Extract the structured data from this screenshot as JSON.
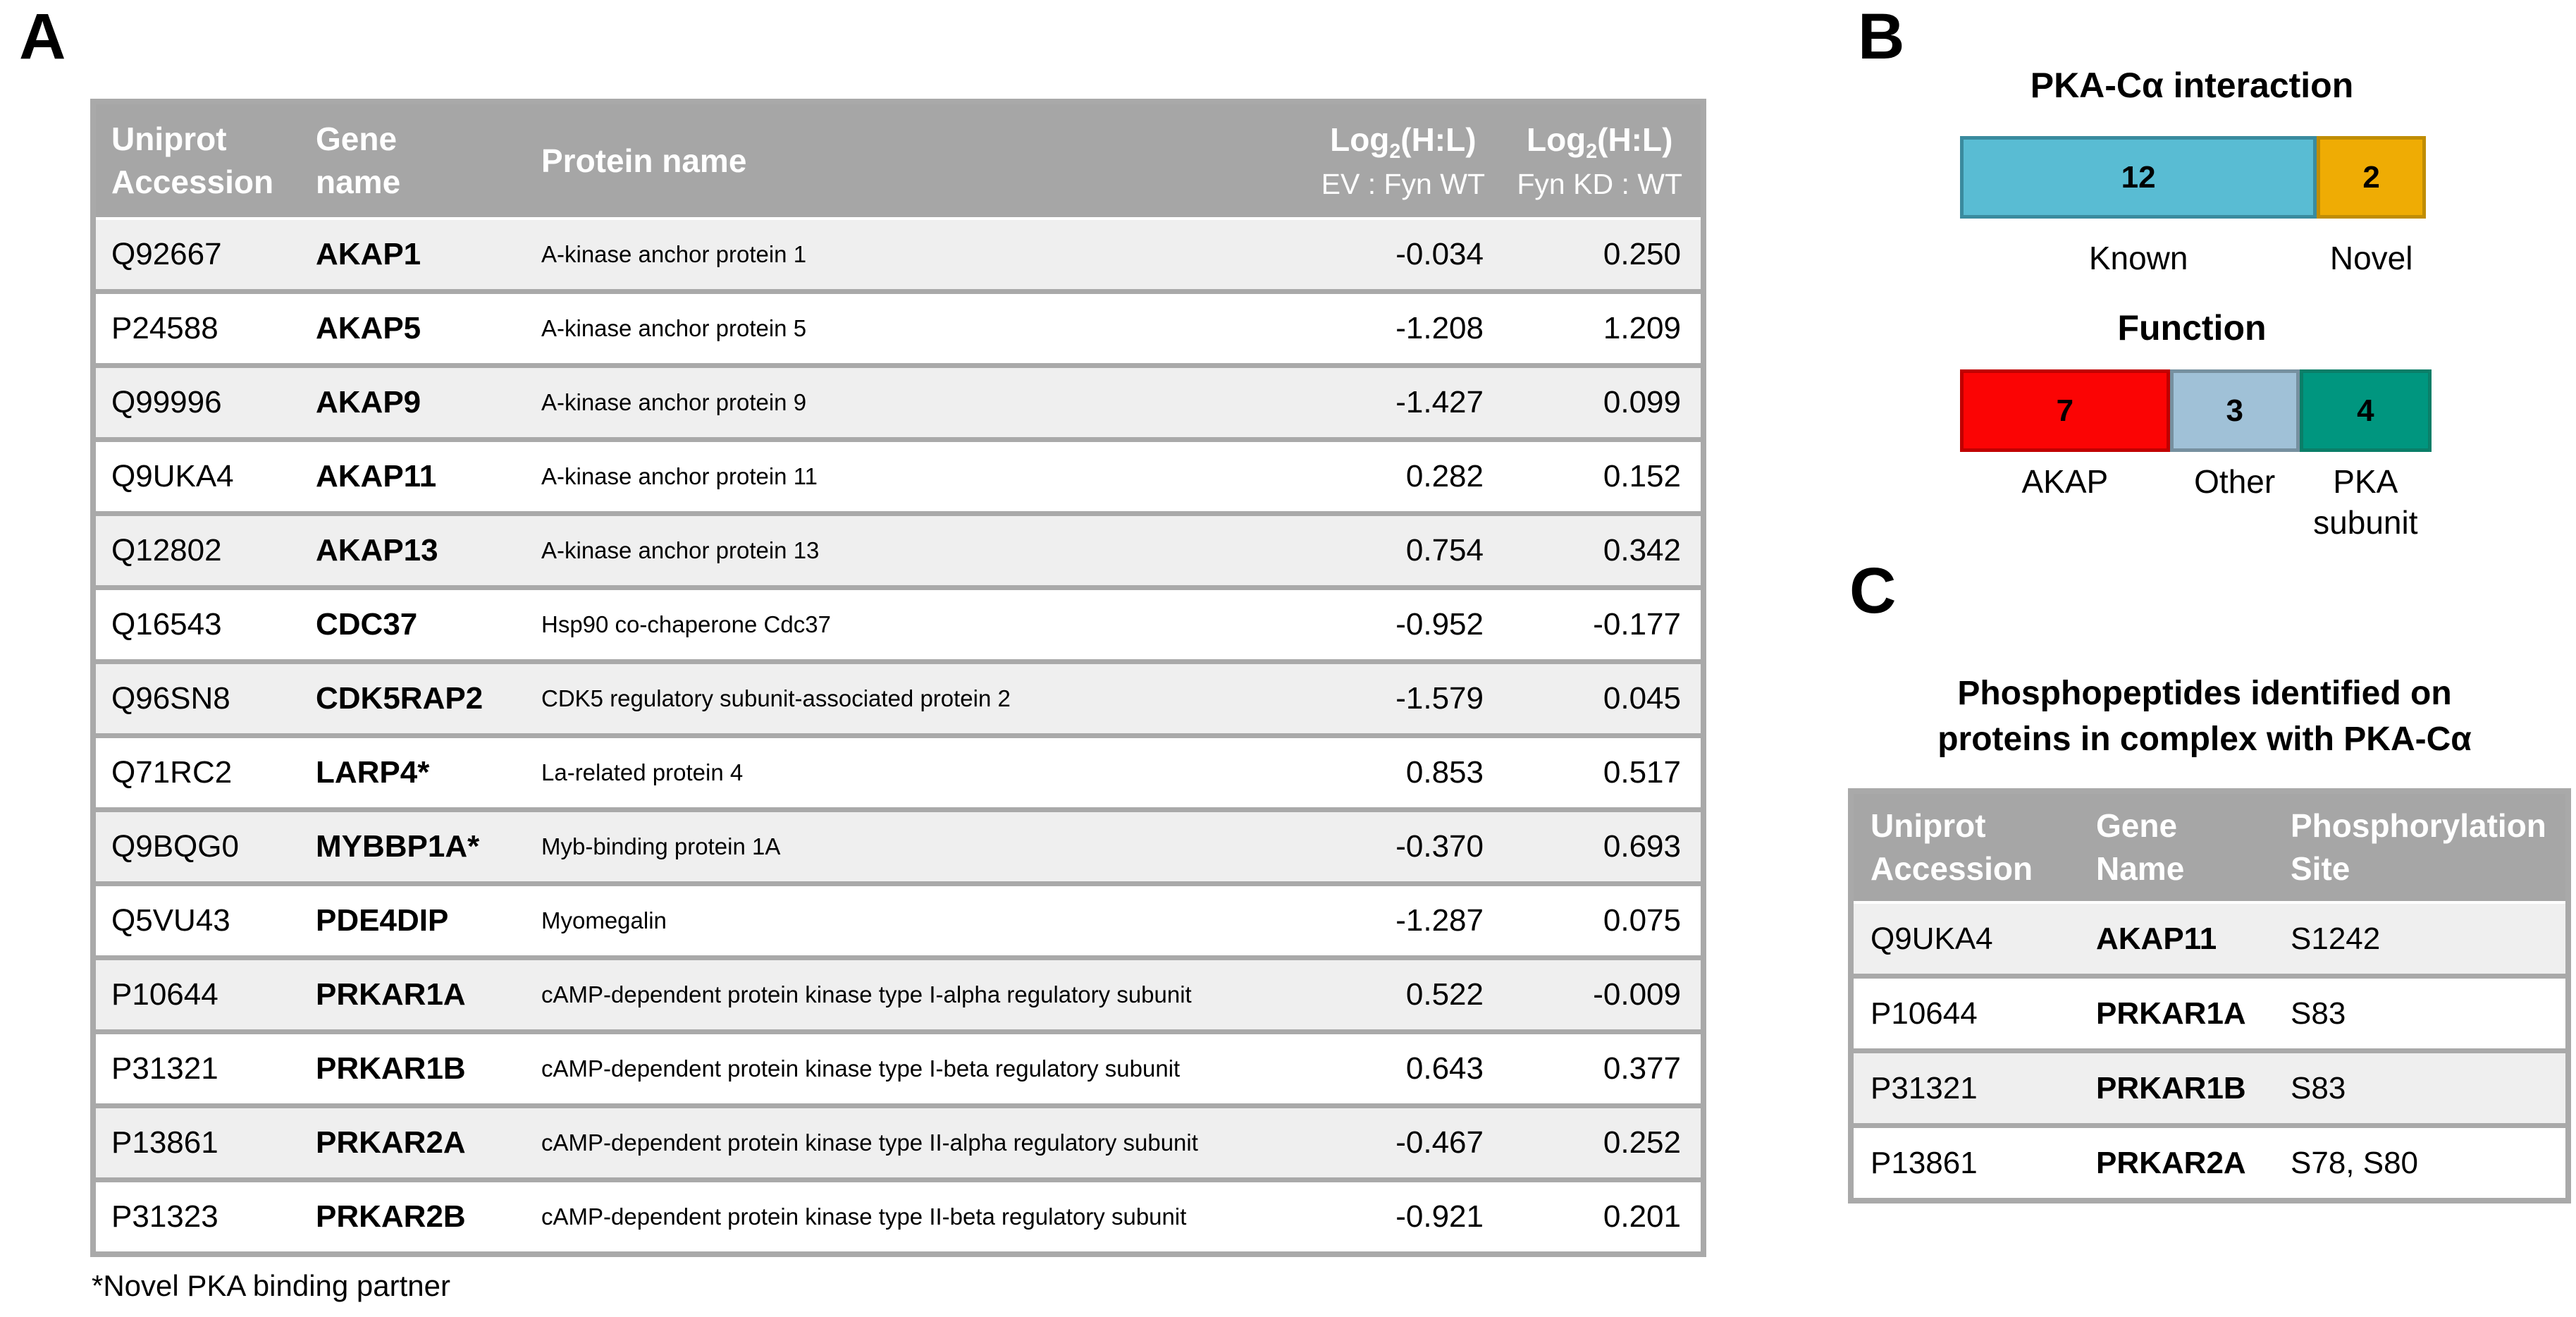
{
  "colors": {
    "header_gray": "#A6A6A6",
    "row_stripe_gray": "#EFEFEF",
    "table_border_gray": "#A9A9A9",
    "known_blue": "#59BCD3",
    "known_blue_border": "#3A8B9E",
    "novel_orange": "#EFAC04",
    "novel_orange_border": "#C08D04",
    "akap_red": "#FB0404",
    "akap_red_border": "#C00000",
    "other_blue": "#A0C1D7",
    "other_blue_border": "#76909F",
    "pka_teal": "#00967F",
    "pka_teal_border": "#0A7E68"
  },
  "panelA": {
    "label": "A",
    "table": {
      "headers": {
        "col1": [
          "Uniprot",
          "Accession"
        ],
        "col2": [
          "Gene",
          "name"
        ],
        "col3": "Protein name",
        "col4": {
          "prefix": "Log",
          "sub": "2",
          "suffix": "(H:L)",
          "line2": "EV : Fyn WT"
        },
        "col5": {
          "prefix": "Log",
          "sub": "2",
          "suffix": "(H:L)",
          "line2": "Fyn KD : WT"
        }
      },
      "rows": [
        {
          "accession": "Q92667",
          "gene": "AKAP1",
          "protein": "A-kinase anchor protein 1",
          "ev": "-0.034",
          "kd": "0.250"
        },
        {
          "accession": "P24588",
          "gene": "AKAP5",
          "protein": "A-kinase anchor protein 5",
          "ev": "-1.208",
          "kd": "1.209"
        },
        {
          "accession": "Q99996",
          "gene": "AKAP9",
          "protein": "A-kinase anchor protein 9",
          "ev": "-1.427",
          "kd": "0.099"
        },
        {
          "accession": "Q9UKA4",
          "gene": "AKAP11",
          "protein": "A-kinase anchor protein 11",
          "ev": "0.282",
          "kd": "0.152"
        },
        {
          "accession": "Q12802",
          "gene": "AKAP13",
          "protein": "A-kinase anchor protein 13",
          "ev": "0.754",
          "kd": "0.342"
        },
        {
          "accession": "Q16543",
          "gene": "CDC37",
          "protein": "Hsp90 co-chaperone Cdc37",
          "ev": "-0.952",
          "kd": "-0.177"
        },
        {
          "accession": "Q96SN8",
          "gene": "CDK5RAP2",
          "protein": "CDK5 regulatory subunit-associated protein 2",
          "ev": "-1.579",
          "kd": "0.045"
        },
        {
          "accession": "Q71RC2",
          "gene": "LARP4*",
          "protein": "La-related protein 4",
          "ev": "0.853",
          "kd": "0.517"
        },
        {
          "accession": "Q9BQG0",
          "gene": "MYBBP1A*",
          "protein": "Myb-binding protein 1A",
          "ev": "-0.370",
          "kd": "0.693"
        },
        {
          "accession": "Q5VU43",
          "gene": "PDE4DIP",
          "protein": "Myomegalin",
          "ev": "-1.287",
          "kd": "0.075"
        },
        {
          "accession": "P10644",
          "gene": "PRKAR1A",
          "protein": "cAMP-dependent protein kinase type I-alpha regulatory subunit",
          "ev": "0.522",
          "kd": "-0.009"
        },
        {
          "accession": "P31321",
          "gene": "PRKAR1B",
          "protein": "cAMP-dependent protein kinase type I-beta regulatory subunit",
          "ev": "0.643",
          "kd": "0.377"
        },
        {
          "accession": "P13861",
          "gene": "PRKAR2A",
          "protein": "cAMP-dependent protein kinase type II-alpha regulatory subunit",
          "ev": "-0.467",
          "kd": "0.252"
        },
        {
          "accession": "P31323",
          "gene": "PRKAR2B",
          "protein": "cAMP-dependent protein kinase type II-beta regulatory subunit",
          "ev": "-0.921",
          "kd": "0.201"
        }
      ]
    },
    "footnote": "*Novel PKA binding partner"
  },
  "panelB": {
    "label": "B",
    "interaction": {
      "title": "PKA-Cα interaction",
      "segments": [
        {
          "name": "known",
          "label": "Known",
          "value": "12",
          "width": "76.6%",
          "fill": "#59BCD3",
          "border": "#3A8B9E"
        },
        {
          "name": "novel",
          "label": "Novel",
          "value": "2",
          "width": "23.4%",
          "fill": "#EFAC04",
          "border": "#C08D04"
        }
      ]
    },
    "function": {
      "title": "Function",
      "segments": [
        {
          "name": "akap",
          "label": "AKAP",
          "value": "7",
          "width": "44.5%",
          "fill": "#FB0404",
          "border": "#C00000"
        },
        {
          "name": "other",
          "label": "Other",
          "value": "3",
          "width": "27.5%",
          "fill": "#A0C1D7",
          "border": "#76909F"
        },
        {
          "name": "pka-subunit",
          "label": "PKA\nsubunit",
          "value": "4",
          "width": "28.0%",
          "fill": "#00967F",
          "border": "#0A7E68"
        }
      ]
    }
  },
  "panelC": {
    "label": "C",
    "title_line1": "Phosphopeptides identified on",
    "title_line2": "proteins in complex with PKA-Cα",
    "table": {
      "headers": {
        "col1": [
          "Uniprot",
          "Accession"
        ],
        "col2": [
          "Gene",
          "Name"
        ],
        "col3": [
          "Phosphorylation",
          "Site"
        ]
      },
      "rows": [
        {
          "accession": "Q9UKA4",
          "gene": "AKAP11",
          "site": "S1242"
        },
        {
          "accession": "P10644",
          "gene": "PRKAR1A",
          "site": "S83"
        },
        {
          "accession": "P31321",
          "gene": "PRKAR1B",
          "site": "S83"
        },
        {
          "accession": "P13861",
          "gene": "PRKAR2A",
          "site": "S78, S80"
        }
      ]
    }
  },
  "chart_data": [
    {
      "type": "bar",
      "subtype": "horizontal-stacked",
      "title": "PKA-Cα interaction",
      "categories": [
        "Known",
        "Novel"
      ],
      "values": [
        12,
        2
      ],
      "colors": [
        "#59BCD3",
        "#EFAC04"
      ],
      "data_labels": true,
      "axes": "none"
    },
    {
      "type": "bar",
      "subtype": "horizontal-stacked",
      "title": "Function",
      "categories": [
        "AKAP",
        "Other",
        "PKA subunit"
      ],
      "values": [
        7,
        3,
        4
      ],
      "colors": [
        "#FB0404",
        "#A0C1D7",
        "#00967F"
      ],
      "data_labels": true,
      "axes": "none"
    }
  ]
}
